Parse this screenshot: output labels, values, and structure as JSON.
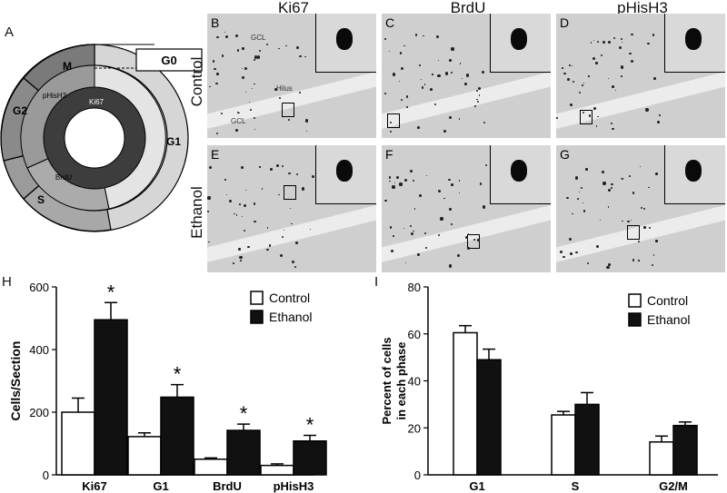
{
  "panel_a": {
    "letter": "A",
    "phases": {
      "m": "M",
      "g2": "G2",
      "s": "S",
      "g1": "G1",
      "g0": "G0"
    },
    "markers": {
      "ki67": "Ki67",
      "phish3": "pHisH3",
      "brdu": "BrdU"
    }
  },
  "micro": {
    "columns": [
      "Ki67",
      "BrdU",
      "pHisH3"
    ],
    "rows": [
      "Control",
      "Ethanol"
    ],
    "panels": [
      "B",
      "C",
      "D",
      "E",
      "F",
      "G"
    ],
    "annotations": {
      "gcl": "GCL",
      "hilus": "Hilus"
    }
  },
  "chart_data": [
    {
      "panel": "H",
      "type": "bar",
      "categories": [
        "Ki67",
        "G1",
        "BrdU",
        "pHisH3"
      ],
      "ylabel": "Cells/Section",
      "ylim": [
        0,
        600
      ],
      "yticks": [
        0,
        200,
        400,
        600
      ],
      "series": [
        {
          "name": "Control",
          "color": "#ffffff",
          "values": [
            200,
            122,
            50,
            30
          ],
          "errors": [
            45,
            12,
            4,
            5
          ]
        },
        {
          "name": "Ethanol",
          "color": "#111111",
          "values": [
            495,
            248,
            142,
            108
          ],
          "errors": [
            55,
            40,
            20,
            18
          ]
        }
      ],
      "significance": [
        "*",
        "*",
        "*",
        "*"
      ],
      "legend": "top-right"
    },
    {
      "panel": "I",
      "type": "bar",
      "categories": [
        "G1",
        "S",
        "G2/M"
      ],
      "ylabel": "Percent of cells in each phase",
      "ylabel_lines": [
        "Percent of cells",
        "in each phase"
      ],
      "ylim": [
        0,
        80
      ],
      "yticks": [
        0,
        20,
        40,
        60,
        80
      ],
      "series": [
        {
          "name": "Control",
          "color": "#ffffff",
          "values": [
            60.5,
            25.5,
            14
          ],
          "errors": [
            3,
            1.5,
            2.5
          ]
        },
        {
          "name": "Ethanol",
          "color": "#111111",
          "values": [
            49,
            30,
            21
          ],
          "errors": [
            4.5,
            5,
            1.5
          ]
        }
      ],
      "legend": "top-right"
    }
  ]
}
